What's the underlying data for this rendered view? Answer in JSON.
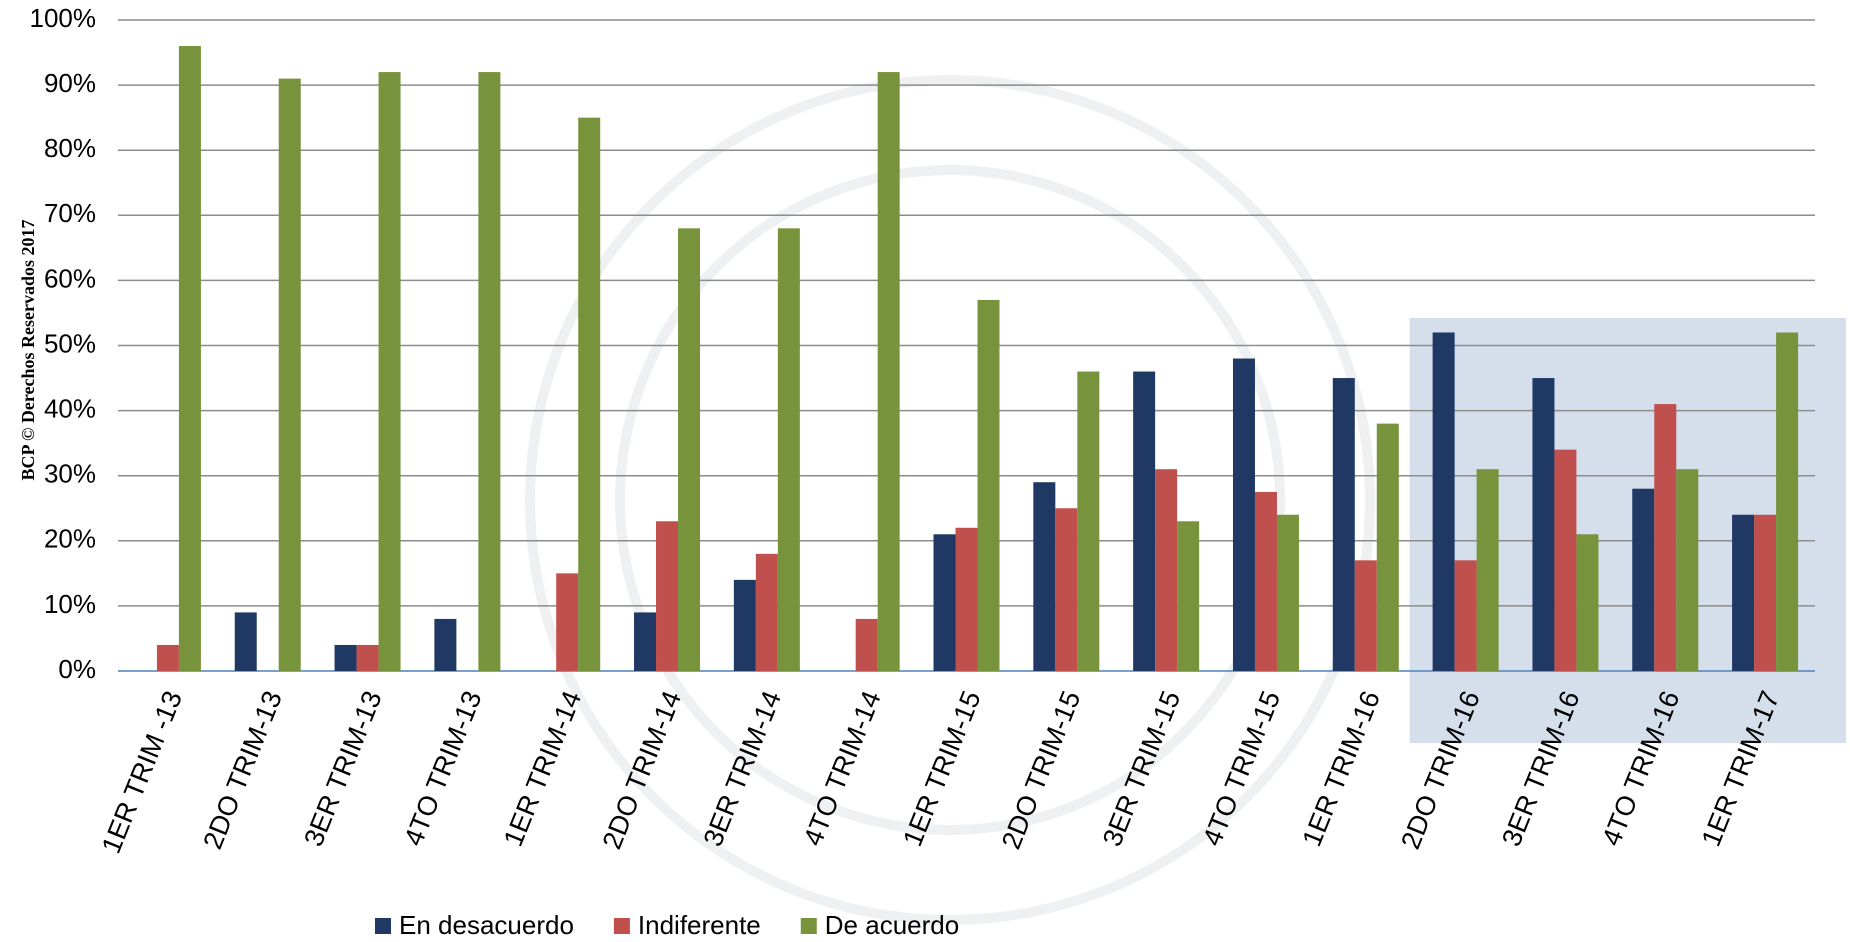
{
  "chart_data": {
    "type": "bar",
    "side_note": "BCP © Derechos Reservados 2017",
    "categories": [
      "1ER TRIM -13",
      "2DO TRIM-13",
      "3ER TRIM-13",
      "4TO TRIM-13",
      "1ER TRIM-14",
      "2DO TRIM-14",
      "3ER TRIM-14",
      "4TO TRIM-14",
      "1ER TRIM-15",
      "2DO TRIM-15",
      "3ER TRIM-15",
      "4TO TRIM-15",
      "1ER TRIM-16",
      "2DO TRIM-16",
      "3ER TRIM-16",
      "4TO TRIM-16",
      "1ER TRIM-17"
    ],
    "series": [
      {
        "name": "En desacuerdo",
        "color": "#1f3864",
        "values": [
          0,
          9,
          4,
          8,
          0,
          9,
          14,
          0,
          21,
          29,
          46,
          48,
          45,
          52,
          45,
          28,
          24
        ]
      },
      {
        "name": "Indiferente",
        "color": "#c0504d",
        "values": [
          4,
          0,
          4,
          0,
          15,
          23,
          18,
          8,
          22,
          25,
          31,
          27.5,
          17,
          17,
          34,
          41,
          24
        ]
      },
      {
        "name": "De acuerdo",
        "color": "#77933c",
        "values": [
          96,
          91,
          92,
          92,
          85,
          68,
          68,
          92,
          57,
          46,
          23,
          24,
          38,
          31,
          21,
          31,
          52
        ]
      }
    ],
    "ylim": [
      0,
      100
    ],
    "yticks": [
      {
        "value": 0,
        "label": "0%"
      },
      {
        "value": 10,
        "label": "10%"
      },
      {
        "value": 20,
        "label": "20%"
      },
      {
        "value": 30,
        "label": "30%"
      },
      {
        "value": 40,
        "label": "40%"
      },
      {
        "value": 50,
        "label": "50%"
      },
      {
        "value": 60,
        "label": "60%"
      },
      {
        "value": 70,
        "label": "70%"
      },
      {
        "value": 80,
        "label": "80%"
      },
      {
        "value": 90,
        "label": "90%"
      },
      {
        "value": 100,
        "label": "100%"
      }
    ],
    "grid": true,
    "legend": "bottom"
  }
}
